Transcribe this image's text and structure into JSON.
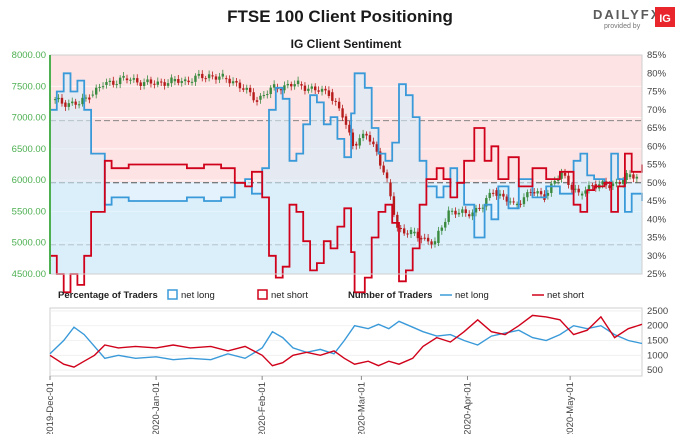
{
  "brand": {
    "logo_text": "DAILYFX",
    "provided_by": "provided by",
    "ig_mark": "IG",
    "colors": {
      "ig_red": "#e8262b",
      "logo_gray": "#5b5b5b"
    }
  },
  "chart_data": {
    "type": "line",
    "title": "FTSE 100 Client Positioning",
    "subtitle": "IG Client Sentiment",
    "x_start": "2019-12-01",
    "x_end": "2020-05-22",
    "x_ticks": [
      "2019-Dec-01",
      "2020-Jan-01",
      "2020-Feb-01",
      "2020-Mar-01",
      "2020-Apr-01",
      "2020-May-01"
    ],
    "left_axis": {
      "ticks": [
        "4500.00",
        "5000.00",
        "5500.00",
        "6000.00",
        "6500.00",
        "7000.00",
        "7500.00",
        "8000.00"
      ],
      "range": [
        4500,
        8000
      ]
    },
    "right_axis": {
      "ticks": [
        "25%",
        "30%",
        "35%",
        "40%",
        "45%",
        "50%",
        "55%",
        "60%",
        "65%",
        "70%",
        "75%",
        "80%",
        "85%"
      ],
      "range": [
        25,
        85
      ]
    },
    "lower_axis": {
      "ticks": [
        "500",
        "1000",
        "1500",
        "2000",
        "2500"
      ],
      "range": [
        300,
        2600
      ]
    },
    "colors": {
      "net_long": "#3a9ad9",
      "net_short": "#d0021b",
      "candle_up": "#3a8a3f",
      "candle_down": "#b71c1c",
      "short_zone": "#fde3e3",
      "long_zone": "#e3f2fc",
      "left_axis": "#4caf50"
    },
    "reference_lines": {
      "dashed_50pct": 50,
      "dashed_upper": 67,
      "dashed_lower": 33
    },
    "legend": {
      "percentage_title": "Percentage of Traders",
      "number_title": "Number of Traders",
      "net_long": "net long",
      "net_short": "net short"
    },
    "price_close": [
      {
        "date": "2019-12-02",
        "v": 7285
      },
      {
        "date": "2019-12-05",
        "v": 7240
      },
      {
        "date": "2019-12-10",
        "v": 7215
      },
      {
        "date": "2019-12-13",
        "v": 7355
      },
      {
        "date": "2019-12-17",
        "v": 7520
      },
      {
        "date": "2019-12-23",
        "v": 7625
      },
      {
        "date": "2019-12-31",
        "v": 7540
      },
      {
        "date": "2020-01-06",
        "v": 7580
      },
      {
        "date": "2020-01-10",
        "v": 7590
      },
      {
        "date": "2020-01-17",
        "v": 7675
      },
      {
        "date": "2020-01-21",
        "v": 7630
      },
      {
        "date": "2020-01-24",
        "v": 7585
      },
      {
        "date": "2020-01-31",
        "v": 7285
      },
      {
        "date": "2020-02-05",
        "v": 7480
      },
      {
        "date": "2020-02-12",
        "v": 7535
      },
      {
        "date": "2020-02-17",
        "v": 7435
      },
      {
        "date": "2020-02-21",
        "v": 7405
      },
      {
        "date": "2020-02-25",
        "v": 7020
      },
      {
        "date": "2020-02-28",
        "v": 6580
      },
      {
        "date": "2020-03-03",
        "v": 6720
      },
      {
        "date": "2020-03-06",
        "v": 6460
      },
      {
        "date": "2020-03-09",
        "v": 5965
      },
      {
        "date": "2020-03-12",
        "v": 5235
      },
      {
        "date": "2020-03-16",
        "v": 5150
      },
      {
        "date": "2020-03-19",
        "v": 5080
      },
      {
        "date": "2020-03-23",
        "v": 4995
      },
      {
        "date": "2020-03-27",
        "v": 5510
      },
      {
        "date": "2020-04-01",
        "v": 5455
      },
      {
        "date": "2020-04-06",
        "v": 5580
      },
      {
        "date": "2020-04-09",
        "v": 5840
      },
      {
        "date": "2020-04-15",
        "v": 5600
      },
      {
        "date": "2020-04-20",
        "v": 5810
      },
      {
        "date": "2020-04-24",
        "v": 5750
      },
      {
        "date": "2020-04-29",
        "v": 6115
      },
      {
        "date": "2020-05-04",
        "v": 5755
      },
      {
        "date": "2020-05-08",
        "v": 5935
      },
      {
        "date": "2020-05-13",
        "v": 5905
      },
      {
        "date": "2020-05-18",
        "v": 6050
      },
      {
        "date": "2020-05-21",
        "v": 6070
      }
    ],
    "net_long_pct": [
      {
        "date": "2019-12-01",
        "v": 70
      },
      {
        "date": "2019-12-03",
        "v": 75
      },
      {
        "date": "2019-12-05",
        "v": 80
      },
      {
        "date": "2019-12-07",
        "v": 75
      },
      {
        "date": "2019-12-09",
        "v": 78
      },
      {
        "date": "2019-12-11",
        "v": 70
      },
      {
        "date": "2019-12-13",
        "v": 58
      },
      {
        "date": "2019-12-15",
        "v": 58
      },
      {
        "date": "2019-12-17",
        "v": 44
      },
      {
        "date": "2019-12-19",
        "v": 46
      },
      {
        "date": "2019-12-24",
        "v": 45
      },
      {
        "date": "2020-01-01",
        "v": 45
      },
      {
        "date": "2020-01-06",
        "v": 45
      },
      {
        "date": "2020-01-10",
        "v": 46
      },
      {
        "date": "2020-01-15",
        "v": 45
      },
      {
        "date": "2020-01-20",
        "v": 46
      },
      {
        "date": "2020-01-24",
        "v": 50
      },
      {
        "date": "2020-01-27",
        "v": 51
      },
      {
        "date": "2020-01-29",
        "v": 47
      },
      {
        "date": "2020-02-01",
        "v": 54
      },
      {
        "date": "2020-02-03",
        "v": 70
      },
      {
        "date": "2020-02-05",
        "v": 76
      },
      {
        "date": "2020-02-07",
        "v": 73
      },
      {
        "date": "2020-02-09",
        "v": 56
      },
      {
        "date": "2020-02-11",
        "v": 58
      },
      {
        "date": "2020-02-13",
        "v": 66
      },
      {
        "date": "2020-02-15",
        "v": 74
      },
      {
        "date": "2020-02-17",
        "v": 72
      },
      {
        "date": "2020-02-19",
        "v": 66
      },
      {
        "date": "2020-02-21",
        "v": 68
      },
      {
        "date": "2020-02-23",
        "v": 62
      },
      {
        "date": "2020-02-25",
        "v": 57
      },
      {
        "date": "2020-02-27",
        "v": 69
      },
      {
        "date": "2020-02-28",
        "v": 80
      },
      {
        "date": "2020-03-02",
        "v": 76
      },
      {
        "date": "2020-03-04",
        "v": 65
      },
      {
        "date": "2020-03-06",
        "v": 58
      },
      {
        "date": "2020-03-08",
        "v": 56
      },
      {
        "date": "2020-03-10",
        "v": 61
      },
      {
        "date": "2020-03-12",
        "v": 77
      },
      {
        "date": "2020-03-14",
        "v": 74
      },
      {
        "date": "2020-03-16",
        "v": 68
      },
      {
        "date": "2020-03-18",
        "v": 56
      },
      {
        "date": "2020-03-20",
        "v": 49
      },
      {
        "date": "2020-03-23",
        "v": 46
      },
      {
        "date": "2020-03-25",
        "v": 49
      },
      {
        "date": "2020-03-27",
        "v": 54
      },
      {
        "date": "2020-03-29",
        "v": 50
      },
      {
        "date": "2020-03-31",
        "v": 44
      },
      {
        "date": "2020-04-03",
        "v": 35
      },
      {
        "date": "2020-04-06",
        "v": 44
      },
      {
        "date": "2020-04-08",
        "v": 40
      },
      {
        "date": "2020-04-10",
        "v": 49
      },
      {
        "date": "2020-04-13",
        "v": 43
      },
      {
        "date": "2020-04-16",
        "v": 51
      },
      {
        "date": "2020-04-20",
        "v": 46
      },
      {
        "date": "2020-04-24",
        "v": 49
      },
      {
        "date": "2020-04-28",
        "v": 47
      },
      {
        "date": "2020-05-02",
        "v": 56
      },
      {
        "date": "2020-05-04",
        "v": 58
      },
      {
        "date": "2020-05-06",
        "v": 52
      },
      {
        "date": "2020-05-08",
        "v": 51
      },
      {
        "date": "2020-05-11",
        "v": 50
      },
      {
        "date": "2020-05-13",
        "v": 58
      },
      {
        "date": "2020-05-15",
        "v": 51
      },
      {
        "date": "2020-05-17",
        "v": 42
      },
      {
        "date": "2020-05-19",
        "v": 47
      },
      {
        "date": "2020-05-22",
        "v": 45
      }
    ],
    "trader_counts": {
      "net_long": [
        {
          "date": "2019-12-01",
          "v": 1050
        },
        {
          "date": "2019-12-05",
          "v": 1500
        },
        {
          "date": "2019-12-08",
          "v": 1950
        },
        {
          "date": "2019-12-11",
          "v": 1700
        },
        {
          "date": "2019-12-14",
          "v": 1300
        },
        {
          "date": "2019-12-17",
          "v": 900
        },
        {
          "date": "2019-12-21",
          "v": 1000
        },
        {
          "date": "2019-12-26",
          "v": 900
        },
        {
          "date": "2020-01-01",
          "v": 950
        },
        {
          "date": "2020-01-06",
          "v": 850
        },
        {
          "date": "2020-01-11",
          "v": 900
        },
        {
          "date": "2020-01-17",
          "v": 850
        },
        {
          "date": "2020-01-22",
          "v": 1050
        },
        {
          "date": "2020-01-27",
          "v": 900
        },
        {
          "date": "2020-02-01",
          "v": 1250
        },
        {
          "date": "2020-02-04",
          "v": 1800
        },
        {
          "date": "2020-02-07",
          "v": 1600
        },
        {
          "date": "2020-02-10",
          "v": 1250
        },
        {
          "date": "2020-02-14",
          "v": 1100
        },
        {
          "date": "2020-02-18",
          "v": 1200
        },
        {
          "date": "2020-02-22",
          "v": 1050
        },
        {
          "date": "2020-02-25",
          "v": 1500
        },
        {
          "date": "2020-02-28",
          "v": 2000
        },
        {
          "date": "2020-03-03",
          "v": 1900
        },
        {
          "date": "2020-03-06",
          "v": 2050
        },
        {
          "date": "2020-03-09",
          "v": 1900
        },
        {
          "date": "2020-03-12",
          "v": 2150
        },
        {
          "date": "2020-03-16",
          "v": 1950
        },
        {
          "date": "2020-03-19",
          "v": 1800
        },
        {
          "date": "2020-03-23",
          "v": 1650
        },
        {
          "date": "2020-03-27",
          "v": 1700
        },
        {
          "date": "2020-03-31",
          "v": 1500
        },
        {
          "date": "2020-04-04",
          "v": 1350
        },
        {
          "date": "2020-04-08",
          "v": 1650
        },
        {
          "date": "2020-04-12",
          "v": 1750
        },
        {
          "date": "2020-04-16",
          "v": 1850
        },
        {
          "date": "2020-04-20",
          "v": 1600
        },
        {
          "date": "2020-04-24",
          "v": 1500
        },
        {
          "date": "2020-04-28",
          "v": 1700
        },
        {
          "date": "2020-05-02",
          "v": 2000
        },
        {
          "date": "2020-05-06",
          "v": 1900
        },
        {
          "date": "2020-05-10",
          "v": 2000
        },
        {
          "date": "2020-05-14",
          "v": 1700
        },
        {
          "date": "2020-05-18",
          "v": 1500
        },
        {
          "date": "2020-05-22",
          "v": 1400
        }
      ],
      "net_short": [
        {
          "date": "2019-12-01",
          "v": 1000
        },
        {
          "date": "2019-12-05",
          "v": 700
        },
        {
          "date": "2019-12-08",
          "v": 600
        },
        {
          "date": "2019-12-11",
          "v": 800
        },
        {
          "date": "2019-12-14",
          "v": 1000
        },
        {
          "date": "2019-12-17",
          "v": 1350
        },
        {
          "date": "2019-12-21",
          "v": 1250
        },
        {
          "date": "2019-12-26",
          "v": 1300
        },
        {
          "date": "2020-01-01",
          "v": 1250
        },
        {
          "date": "2020-01-06",
          "v": 1350
        },
        {
          "date": "2020-01-11",
          "v": 1250
        },
        {
          "date": "2020-01-17",
          "v": 1300
        },
        {
          "date": "2020-01-22",
          "v": 1150
        },
        {
          "date": "2020-01-27",
          "v": 1300
        },
        {
          "date": "2020-02-01",
          "v": 1000
        },
        {
          "date": "2020-02-04",
          "v": 650
        },
        {
          "date": "2020-02-07",
          "v": 750
        },
        {
          "date": "2020-02-10",
          "v": 1000
        },
        {
          "date": "2020-02-14",
          "v": 1100
        },
        {
          "date": "2020-02-18",
          "v": 1000
        },
        {
          "date": "2020-02-22",
          "v": 1150
        },
        {
          "date": "2020-02-25",
          "v": 900
        },
        {
          "date": "2020-02-28",
          "v": 700
        },
        {
          "date": "2020-03-03",
          "v": 800
        },
        {
          "date": "2020-03-06",
          "v": 650
        },
        {
          "date": "2020-03-09",
          "v": 800
        },
        {
          "date": "2020-03-12",
          "v": 700
        },
        {
          "date": "2020-03-16",
          "v": 900
        },
        {
          "date": "2020-03-19",
          "v": 1300
        },
        {
          "date": "2020-03-23",
          "v": 1600
        },
        {
          "date": "2020-03-27",
          "v": 1450
        },
        {
          "date": "2020-03-31",
          "v": 1800
        },
        {
          "date": "2020-04-04",
          "v": 2200
        },
        {
          "date": "2020-04-08",
          "v": 1800
        },
        {
          "date": "2020-04-12",
          "v": 1700
        },
        {
          "date": "2020-04-16",
          "v": 2000
        },
        {
          "date": "2020-04-20",
          "v": 2350
        },
        {
          "date": "2020-04-24",
          "v": 2300
        },
        {
          "date": "2020-04-28",
          "v": 2200
        },
        {
          "date": "2020-05-02",
          "v": 1700
        },
        {
          "date": "2020-05-06",
          "v": 1850
        },
        {
          "date": "2020-05-10",
          "v": 2300
        },
        {
          "date": "2020-05-14",
          "v": 1600
        },
        {
          "date": "2020-05-18",
          "v": 1900
        },
        {
          "date": "2020-05-22",
          "v": 2050
        }
      ]
    }
  }
}
